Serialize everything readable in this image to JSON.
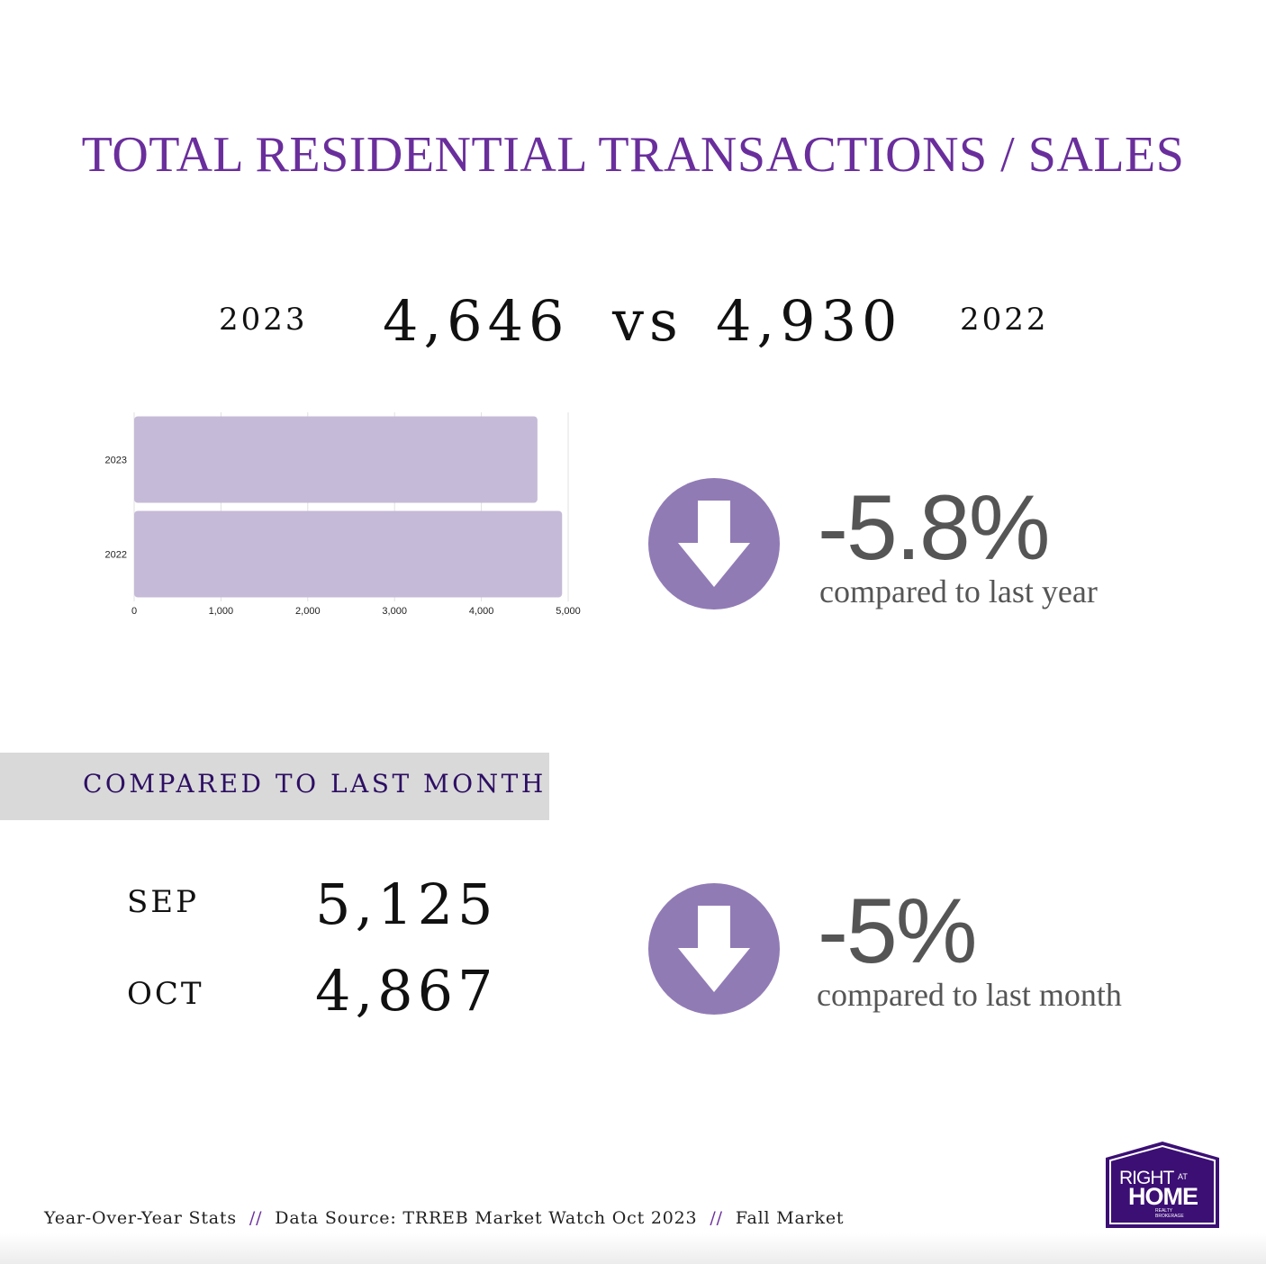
{
  "title": "TOTAL RESIDENTIAL TRANSACTIONS / SALES",
  "yoy": {
    "year_a": "2023",
    "value_a": "4,646",
    "vs": "vs",
    "value_b": "4,930",
    "year_b": "2022",
    "change": "-5.8%",
    "change_label": "compared to last year"
  },
  "chart_data": {
    "type": "bar",
    "orientation": "horizontal",
    "categories": [
      "2023",
      "2022"
    ],
    "values": [
      4646,
      4930
    ],
    "xlim": [
      0,
      5000
    ],
    "x_ticks": [
      0,
      1000,
      2000,
      3000,
      4000,
      5000
    ],
    "x_tick_labels": [
      "0",
      "1,000",
      "2,000",
      "3,000",
      "4,000",
      "5,000"
    ],
    "grid": true,
    "bar_color": "#c5bad7"
  },
  "mom": {
    "banner": "COMPARED TO LAST MONTH",
    "month_a": "SEP",
    "value_a": "5,125",
    "month_b": "OCT",
    "value_b": "4,867",
    "change": "-5%",
    "change_label": "compared to last month"
  },
  "colors": {
    "title": "#6a2e9c",
    "arrow_circle": "#917bb5",
    "banner_bg": "#d9d9d9",
    "logo_bg": "#3b0f74"
  },
  "footer": {
    "item1": "Year-Over-Year Stats",
    "sep": "//",
    "item2": "Data Source: TRREB Market Watch Oct 2023",
    "item3": "Fall Market"
  },
  "logo": {
    "line1": "RIGHT",
    "at": "AT",
    "line2": "HOME",
    "sub1": "REALTY",
    "sub2": "BROKERAGE"
  }
}
